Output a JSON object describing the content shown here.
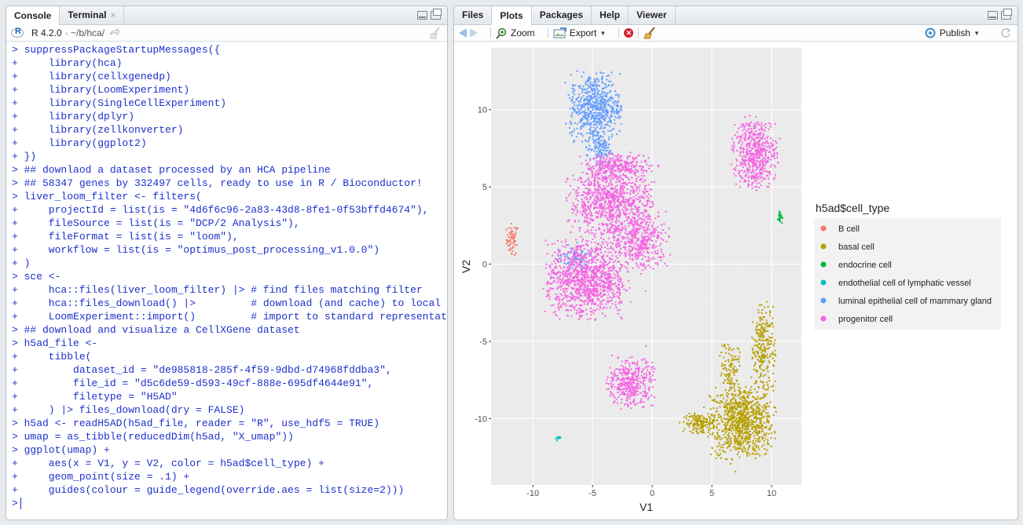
{
  "left_pane": {
    "tabs": [
      {
        "label": "Console"
      },
      {
        "label": "Terminal"
      }
    ],
    "terminal_close": "×",
    "r_version": "R 4.2.0",
    "path": "· ~/b/hca/",
    "console_lines": [
      "> suppressPackageStartupMessages({",
      "+     library(hca)",
      "+     library(cellxgenedp)",
      "+     library(LoomExperiment)",
      "+     library(SingleCellExperiment)",
      "+     library(dplyr)",
      "+     library(zellkonverter)",
      "+     library(ggplot2)",
      "+ })",
      "> ## downlaod a dataset processed by an HCA pipeline",
      "> ## 58347 genes by 332497 cells, ready to use in R / Bioconductor!",
      "> liver_loom_filter <- filters(",
      "+     projectId = list(is = \"4d6f6c96-2a83-43d8-8fe1-0f53bffd4674\"),",
      "+     fileSource = list(is = \"DCP/2 Analysis\"),",
      "+     fileFormat = list(is = \"loom\"),",
      "+     workflow = list(is = \"optimus_post_processing_v1.0.0\")",
      "+ )",
      "> sce <-",
      "+     hca::files(liver_loom_filter) |> # find files matching filter",
      "+     hca::files_download() |>         # download (and cache) to local disk",
      "+     LoomExperiment::import()         # import to standard representation",
      "> ## download and visualize a CellXGene dataset",
      "> h5ad_file <-",
      "+     tibble(",
      "+         dataset_id = \"de985818-285f-4f59-9dbd-d74968fddba3\",",
      "+         file_id = \"d5c6de59-d593-49cf-888e-695df4644e91\",",
      "+         filetype = \"H5AD\"",
      "+     ) |> files_download(dry = FALSE)",
      "> h5ad <- readH5AD(h5ad_file, reader = \"R\", use_hdf5 = TRUE)",
      "> umap = as_tibble(reducedDim(h5ad, \"X_umap\"))",
      "> ggplot(umap) +",
      "+     aes(x = V1, y = V2, color = h5ad$cell_type) +",
      "+     geom_point(size = .1) +",
      "+     guides(colour = guide_legend(override.aes = list(size=2)))",
      ">"
    ]
  },
  "right_pane": {
    "tabs": [
      {
        "label": "Files"
      },
      {
        "label": "Plots"
      },
      {
        "label": "Packages"
      },
      {
        "label": "Help"
      },
      {
        "label": "Viewer"
      }
    ],
    "toolbar": {
      "zoom": "Zoom",
      "export": "Export",
      "publish": "Publish"
    }
  },
  "chart_data": {
    "type": "scatter",
    "xlabel": "V1",
    "ylabel": "V2",
    "xlim": [
      -13.5,
      12.5
    ],
    "ylim": [
      -14.3,
      14
    ],
    "x_ticks": [
      -10,
      -5,
      0,
      5,
      10
    ],
    "y_ticks": [
      -10,
      -5,
      0,
      5,
      10
    ],
    "grid": true,
    "legend_title": "h5ad$cell_type",
    "legend_position": "right",
    "series": [
      {
        "name": "B cell",
        "color": "#F8766D",
        "clusters": [
          {
            "cx": -11.7,
            "cy": 1.6,
            "rx": 0.5,
            "ry": 1.0,
            "n": 60
          }
        ]
      },
      {
        "name": "basal cell",
        "color": "#B79F00",
        "clusters": [
          {
            "cx": 7.5,
            "cy": -10.2,
            "rx": 2.6,
            "ry": 2.3,
            "n": 900
          },
          {
            "cx": 4.0,
            "cy": -10.3,
            "rx": 1.3,
            "ry": 0.6,
            "n": 150
          },
          {
            "cx": 9.3,
            "cy": -5.5,
            "rx": 1.0,
            "ry": 3.0,
            "n": 250
          },
          {
            "cx": 6.5,
            "cy": -6.6,
            "rx": 0.8,
            "ry": 1.5,
            "n": 100
          }
        ]
      },
      {
        "name": "endocrine cell",
        "color": "#00BA38",
        "clusters": [
          {
            "cx": 10.7,
            "cy": 3.1,
            "rx": 0.2,
            "ry": 0.4,
            "n": 25
          }
        ]
      },
      {
        "name": "endothelial cell of lymphatic vessel",
        "color": "#00BFC4",
        "clusters": [
          {
            "cx": -7.9,
            "cy": -11.3,
            "rx": 0.2,
            "ry": 0.15,
            "n": 15
          }
        ]
      },
      {
        "name": "luminal epithelial cell of mammary gland",
        "color": "#619CFF",
        "clusters": [
          {
            "cx": -4.8,
            "cy": 10.2,
            "rx": 2.1,
            "ry": 2.1,
            "n": 600
          },
          {
            "cx": -4.5,
            "cy": 7.5,
            "rx": 1.0,
            "ry": 1.0,
            "n": 120
          },
          {
            "cx": -6.5,
            "cy": 0.4,
            "rx": 1.6,
            "ry": 0.8,
            "n": 70
          }
        ]
      },
      {
        "name": "progenitor cell",
        "color": "#F564E3",
        "clusters": [
          {
            "cx": -5.5,
            "cy": -1.0,
            "rx": 3.3,
            "ry": 2.4,
            "n": 1100
          },
          {
            "cx": -3.5,
            "cy": 4.0,
            "rx": 3.4,
            "ry": 2.2,
            "n": 900
          },
          {
            "cx": -1.0,
            "cy": 1.5,
            "rx": 2.3,
            "ry": 1.8,
            "n": 400
          },
          {
            "cx": -3.0,
            "cy": 6.3,
            "rx": 2.8,
            "ry": 0.8,
            "n": 280
          },
          {
            "cx": 8.6,
            "cy": 7.2,
            "rx": 1.8,
            "ry": 2.2,
            "n": 550
          },
          {
            "cx": -1.8,
            "cy": -7.7,
            "rx": 1.9,
            "ry": 1.6,
            "n": 400
          }
        ]
      }
    ]
  }
}
